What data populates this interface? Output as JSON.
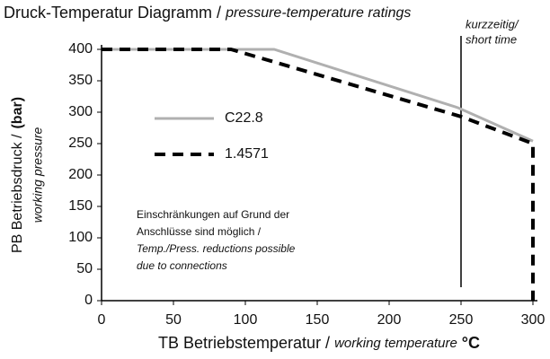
{
  "chart_data": {
    "type": "line",
    "title": "Druck-Temperatur Diagramm /",
    "subtitle": "pressure-temperature ratings",
    "y_label": "PB Betriebsdruck /",
    "y_label_unit": "(bar)",
    "y_label_en": "working pressure",
    "x_label": "TB Betriebstemperatur /",
    "x_label_en": "working temperature",
    "x_label_unit": "°C",
    "xlim": [
      0,
      300
    ],
    "ylim": [
      0,
      400
    ],
    "xticks": [
      0,
      50,
      100,
      150,
      200,
      250,
      300
    ],
    "yticks": [
      0,
      50,
      100,
      150,
      200,
      250,
      300,
      350,
      400
    ],
    "series": [
      {
        "name": "C22.8",
        "color": "#b0b0b0",
        "dashed": false,
        "x": [
          0,
          120,
          248,
          300
        ],
        "values": [
          400,
          400,
          307,
          254
        ]
      },
      {
        "name": "1.4571",
        "color": "#000000",
        "dashed": true,
        "x": [
          0,
          90,
          250,
          300,
          300
        ],
        "values": [
          400,
          400,
          293,
          250,
          0
        ]
      }
    ],
    "reference_x": 250,
    "reference_label": [
      "kurzzeitig/",
      "short time"
    ],
    "note": [
      "Einschränkungen auf Grund der",
      "Anschlüsse sind möglich /",
      "Temp./Press. reductions possible",
      "due to connections"
    ]
  }
}
